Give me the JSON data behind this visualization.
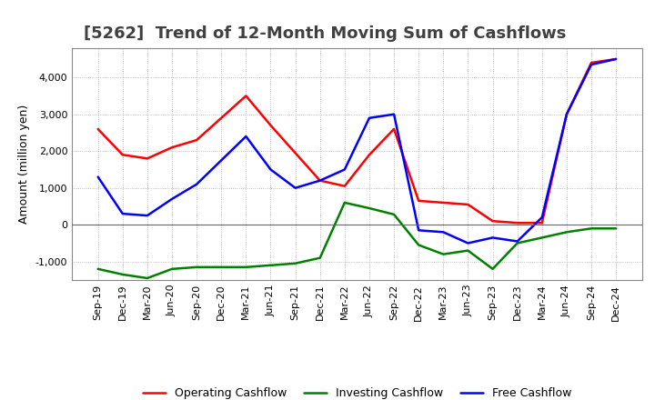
{
  "title": "[5262]  Trend of 12-Month Moving Sum of Cashflows",
  "ylabel": "Amount (million yen)",
  "x_labels": [
    "Sep-19",
    "Dec-19",
    "Mar-20",
    "Jun-20",
    "Sep-20",
    "Dec-20",
    "Mar-21",
    "Jun-21",
    "Sep-21",
    "Dec-21",
    "Mar-22",
    "Jun-22",
    "Sep-22",
    "Dec-22",
    "Mar-23",
    "Jun-23",
    "Sep-23",
    "Dec-23",
    "Mar-24",
    "Jun-24",
    "Sep-24",
    "Dec-24"
  ],
  "operating_cashflow": [
    2600,
    1900,
    1800,
    2100,
    2300,
    2900,
    3500,
    2700,
    1950,
    1200,
    1050,
    1900,
    2600,
    650,
    600,
    550,
    100,
    50,
    50,
    3000,
    4400,
    4500
  ],
  "investing_cashflow": [
    -1200,
    -1350,
    -1450,
    -1200,
    -1150,
    -1150,
    -1150,
    -1100,
    -1050,
    -900,
    600,
    450,
    280,
    -550,
    -800,
    -700,
    -1200,
    -500,
    -350,
    -200,
    -100,
    -100
  ],
  "free_cashflow": [
    1300,
    300,
    250,
    700,
    1100,
    1750,
    2400,
    1500,
    1000,
    1200,
    1500,
    2900,
    3000,
    -150,
    -200,
    -500,
    -350,
    -450,
    200,
    3000,
    4350,
    4500
  ],
  "operating_color": "#ff0000",
  "investing_color": "#008000",
  "free_color": "#0000ff",
  "ylim": [
    -1500,
    4800
  ],
  "yticks": [
    -1000,
    0,
    1000,
    2000,
    3000,
    4000
  ],
  "background_color": "#ffffff",
  "grid_color": "#999999",
  "title_color": "#404040",
  "title_fontsize": 13,
  "axis_fontsize": 9,
  "tick_fontsize": 8,
  "legend_fontsize": 9,
  "linewidth": 1.8
}
